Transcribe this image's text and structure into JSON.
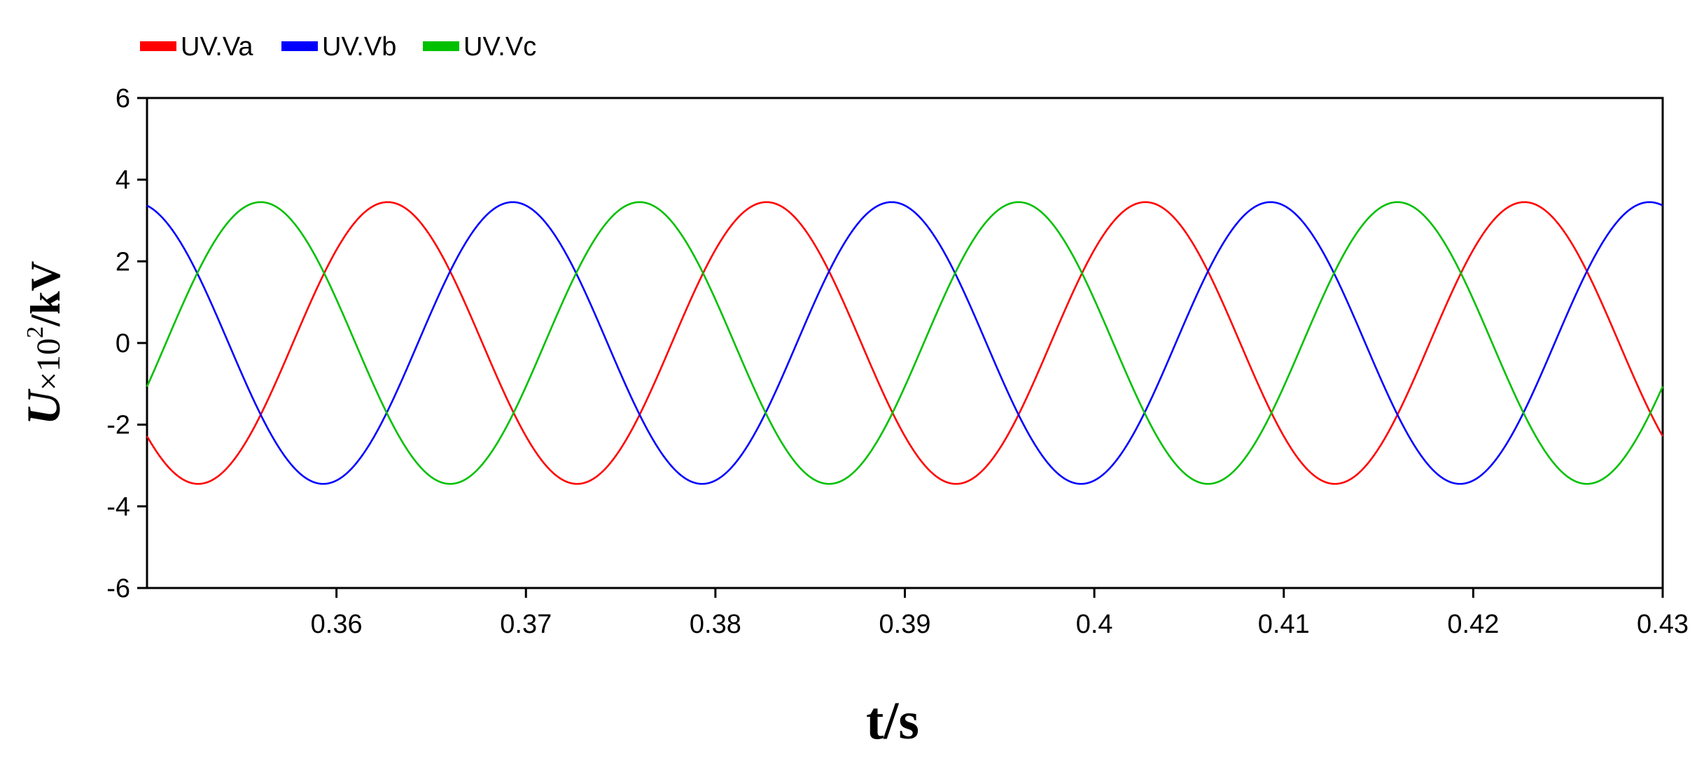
{
  "chart_data": {
    "type": "line",
    "xlabel": "t/s",
    "ylabel": {
      "symbol": "U",
      "multiplier": "×10",
      "exponent": "2",
      "unit": "/kV"
    },
    "xlim": [
      0.35,
      0.43
    ],
    "ylim": [
      -6,
      6
    ],
    "x_ticks": [
      0.36,
      0.37,
      0.38,
      0.39,
      0.4,
      0.41,
      0.42,
      0.43
    ],
    "x_tick_labels": [
      "0.36",
      "0.37",
      "0.38",
      "0.39",
      "0.4",
      "0.41",
      "0.42",
      "0.43"
    ],
    "y_ticks": [
      -6,
      -4,
      -2,
      0,
      2,
      4,
      6
    ],
    "y_tick_labels": [
      "-6",
      "-4",
      "-2",
      "0",
      "2",
      "4",
      "6"
    ],
    "grid": false,
    "legend_position": "top-left",
    "frequency_hz": 50,
    "amplitude": 3.45,
    "series": [
      {
        "name": "UV.Va",
        "color": "#ff0000",
        "peak_time": 0.3627
      },
      {
        "name": "UV.Vb",
        "color": "#0000ff",
        "peak_time": 0.3693
      },
      {
        "name": "UV.Vc",
        "color": "#00c000",
        "peak_time": 0.356
      }
    ]
  }
}
